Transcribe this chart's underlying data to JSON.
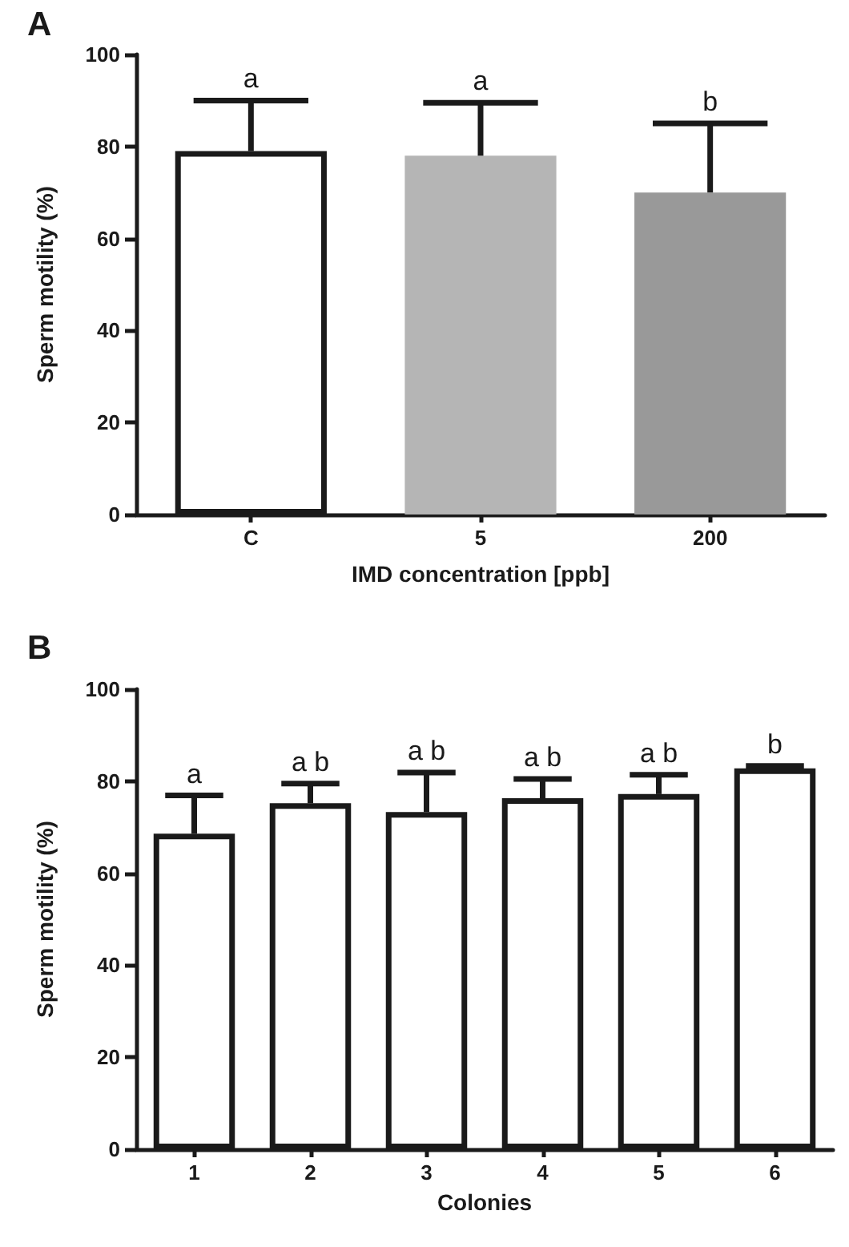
{
  "chart_data": [
    {
      "type": "bar",
      "title": "A",
      "xlabel": "IMD concentration [ppb]",
      "ylabel": "Sperm motility (%)",
      "categories": [
        "C",
        "5",
        "200"
      ],
      "values": [
        79,
        78,
        70
      ],
      "colors": [
        "#ffffff",
        "#b5b5b5",
        "#999999"
      ],
      "errors": [
        11,
        11.5,
        15
      ],
      "ylim": [
        0,
        100
      ],
      "yticks": [
        0,
        20,
        40,
        60,
        80,
        100
      ],
      "grid": false,
      "annotations": [
        {
          "text": "a",
          "x": "C",
          "y": 90
        },
        {
          "text": "a",
          "x": "5",
          "y": 89.5
        },
        {
          "text": "b",
          "x": "200",
          "y": 85
        }
      ]
    },
    {
      "type": "bar",
      "title": "B",
      "xlabel": "Colonies",
      "ylabel": "Sperm motility (%)",
      "categories": [
        "1",
        "2",
        "3",
        "4",
        "5",
        "6"
      ],
      "values": [
        68.6,
        75.2,
        73.3,
        76.3,
        77.2,
        82.8
      ],
      "colors": [
        "#ffffff",
        "#ffffff",
        "#ffffff",
        "#ffffff",
        "#ffffff",
        "#ffffff"
      ],
      "errors": [
        8.3,
        4.3,
        8.6,
        4.2,
        4.2,
        0.5
      ],
      "ylim": [
        0,
        100
      ],
      "yticks": [
        0,
        20,
        40,
        60,
        80,
        100
      ],
      "grid": false,
      "annotations": [
        {
          "text": "a",
          "x": "1",
          "y": 76.9
        },
        {
          "text": "a b",
          "x": "2",
          "y": 79.5
        },
        {
          "text": "a b",
          "x": "3",
          "y": 81.9
        },
        {
          "text": "a b",
          "x": "4",
          "y": 80.5
        },
        {
          "text": "a b",
          "x": "5",
          "y": 81.4
        },
        {
          "text": "b",
          "x": "6",
          "y": 83.3
        }
      ]
    }
  ]
}
